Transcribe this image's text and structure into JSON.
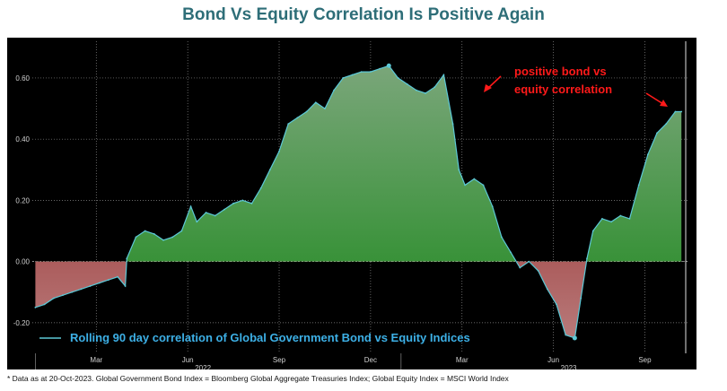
{
  "title": "Bond Vs Equity Correlation Is Positive Again",
  "footnote": "* Data as at 20-Oct-2023. Global Government Bond Index = Bloomberg Global Aggregate Treasuries Index; Global Equity Index = MSCI World Index",
  "annotation": {
    "text_line1": "positive bond vs",
    "text_line2": "equity correlation",
    "color": "#ff1a1a"
  },
  "colors": {
    "background": "#000000",
    "line": "#5cc8d6",
    "positive_fill": "#1f8a1f",
    "negative_fill": "#8b1010",
    "grid": "#8a8a8a",
    "legend_text": "#3db0e6",
    "axis_text": "#d0d0d0"
  },
  "chart_data": {
    "type": "area",
    "x_unit": "month index from Jan 2022 (0 = start of Jan 2022)",
    "ylim": [
      -0.3,
      0.72
    ],
    "yticks": [
      -0.2,
      0,
      0.2,
      0.4,
      0.6
    ],
    "ytick_labels": [
      "-0.20",
      "0.00",
      "0.20",
      "0.40",
      "0.60"
    ],
    "xtick_months": [
      "Mar",
      "Jun",
      "Sep",
      "Dec",
      "Mar",
      "Jun",
      "Sep"
    ],
    "xtick_positions": [
      2,
      5,
      8,
      11,
      14,
      17,
      20
    ],
    "year_labels": [
      "2022",
      "2023"
    ],
    "year_positions": [
      5.5,
      17.5
    ],
    "grid": true,
    "legend_position": "bottom-left",
    "series": [
      {
        "name": "Rolling 90 day correlation of Global Government Bond vs Equity Indices",
        "x": [
          0,
          0.3,
          0.6,
          0.9,
          1.2,
          1.5,
          1.8,
          2.1,
          2.4,
          2.7,
          2.95,
          3.0,
          3.3,
          3.6,
          3.9,
          4.2,
          4.5,
          4.8,
          5.1,
          5.3,
          5.6,
          5.9,
          6.2,
          6.5,
          6.8,
          7.1,
          7.4,
          7.7,
          8.0,
          8.3,
          8.6,
          8.9,
          9.2,
          9.5,
          9.8,
          10.1,
          10.4,
          10.7,
          11.0,
          11.3,
          11.6,
          11.9,
          12.2,
          12.5,
          12.8,
          13.1,
          13.4,
          13.7,
          13.9,
          14.1,
          14.4,
          14.7,
          15.0,
          15.3,
          15.6,
          15.9,
          16.2,
          16.5,
          16.8,
          17.1,
          17.4,
          17.7,
          17.9,
          18.1,
          18.3,
          18.6,
          18.9,
          19.2,
          19.5,
          19.8,
          20.1,
          20.4,
          20.7,
          21.0,
          21.2
        ],
        "y": [
          -0.15,
          -0.14,
          -0.12,
          -0.11,
          -0.1,
          -0.09,
          -0.08,
          -0.07,
          -0.06,
          -0.05,
          -0.08,
          0.01,
          0.08,
          0.1,
          0.09,
          0.07,
          0.08,
          0.1,
          0.18,
          0.13,
          0.16,
          0.15,
          0.17,
          0.19,
          0.2,
          0.19,
          0.24,
          0.3,
          0.36,
          0.45,
          0.47,
          0.49,
          0.52,
          0.5,
          0.56,
          0.6,
          0.61,
          0.62,
          0.62,
          0.63,
          0.64,
          0.6,
          0.58,
          0.56,
          0.55,
          0.57,
          0.61,
          0.45,
          0.3,
          0.25,
          0.27,
          0.25,
          0.18,
          0.08,
          0.03,
          -0.02,
          0.0,
          -0.03,
          -0.09,
          -0.14,
          -0.24,
          -0.25,
          -0.12,
          0.01,
          0.1,
          0.14,
          0.13,
          0.15,
          0.14,
          0.25,
          0.35,
          0.42,
          0.45,
          0.49,
          0.49
        ]
      }
    ]
  }
}
